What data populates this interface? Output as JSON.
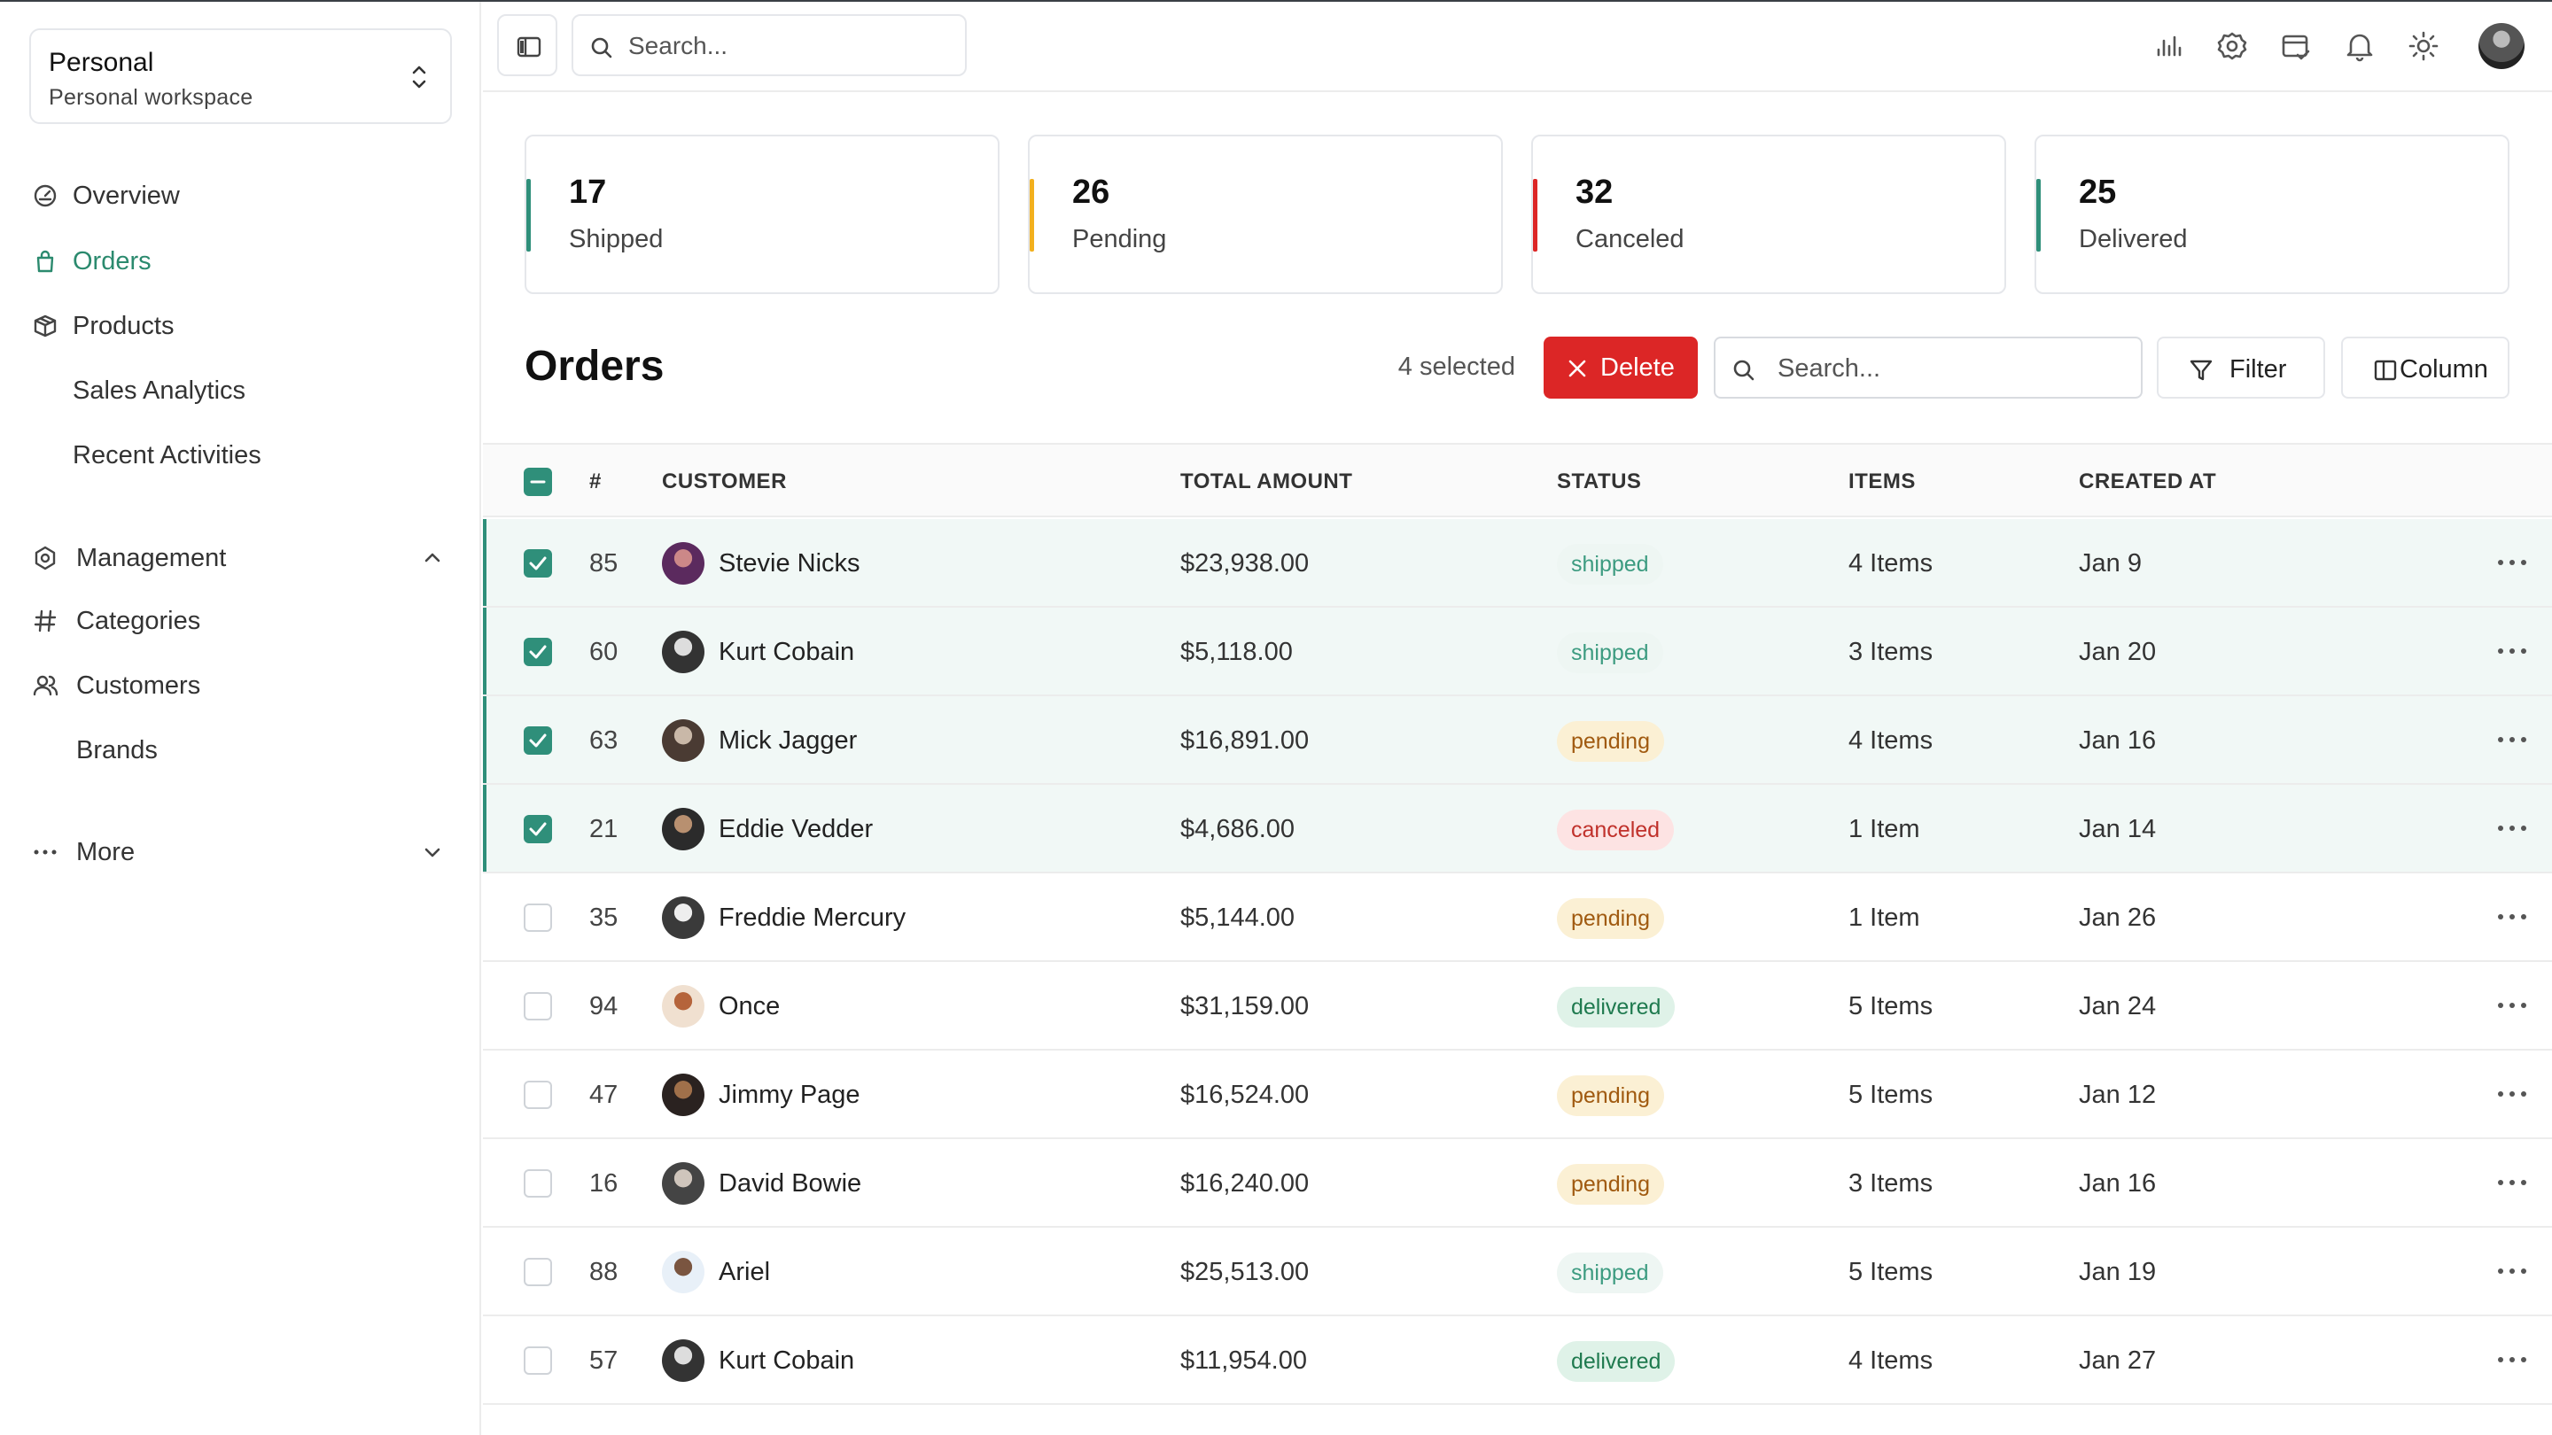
{
  "workspace": {
    "title": "Personal",
    "subtitle": "Personal workspace"
  },
  "sidebar": {
    "items": [
      {
        "label": "Overview",
        "icon": "gauge-icon",
        "active": false
      },
      {
        "label": "Orders",
        "icon": "shopping-bag-icon",
        "active": true
      },
      {
        "label": "Products",
        "icon": "package-icon",
        "active": false
      },
      {
        "label": "Sales Analytics",
        "icon": "",
        "active": false
      },
      {
        "label": "Recent Activities",
        "icon": "",
        "active": false
      }
    ],
    "management": {
      "label": "Management",
      "items": [
        {
          "label": "Categories",
          "icon": "hash-icon"
        },
        {
          "label": "Customers",
          "icon": "users-icon"
        },
        {
          "label": "Brands",
          "icon": ""
        }
      ]
    },
    "more_label": "More"
  },
  "topbar": {
    "search_placeholder": "Search..."
  },
  "stats": [
    {
      "value": "17",
      "label": "Shipped",
      "color": "#2f8f7a"
    },
    {
      "value": "26",
      "label": "Pending",
      "color": "#f2b01e"
    },
    {
      "value": "32",
      "label": "Canceled",
      "color": "#dc2626"
    },
    {
      "value": "25",
      "label": "Delivered",
      "color": "#2f8f7a"
    }
  ],
  "orders": {
    "title": "Orders",
    "selected_count": "4 selected",
    "delete_label": "Delete",
    "search_placeholder": "Search...",
    "filter_label": "Filter",
    "column_label": "Column",
    "columns": [
      "#",
      "CUSTOMER",
      "TOTAL AMOUNT",
      "STATUS",
      "ITEMS",
      "CREATED AT"
    ],
    "rows": [
      {
        "id": "85",
        "customer": "Stevie Nicks",
        "amount": "$23,938.00",
        "status": "shipped",
        "items": "4 Items",
        "created": "Jan 9",
        "selected": true
      },
      {
        "id": "60",
        "customer": "Kurt Cobain",
        "amount": "$5,118.00",
        "status": "shipped",
        "items": "3 Items",
        "created": "Jan 20",
        "selected": true
      },
      {
        "id": "63",
        "customer": "Mick Jagger",
        "amount": "$16,891.00",
        "status": "pending",
        "items": "4 Items",
        "created": "Jan 16",
        "selected": true
      },
      {
        "id": "21",
        "customer": "Eddie Vedder",
        "amount": "$4,686.00",
        "status": "canceled",
        "items": "1 Item",
        "created": "Jan 14",
        "selected": true
      },
      {
        "id": "35",
        "customer": "Freddie Mercury",
        "amount": "$5,144.00",
        "status": "pending",
        "items": "1 Item",
        "created": "Jan 26",
        "selected": false
      },
      {
        "id": "94",
        "customer": "Once",
        "amount": "$31,159.00",
        "status": "delivered",
        "items": "5 Items",
        "created": "Jan 24",
        "selected": false
      },
      {
        "id": "47",
        "customer": "Jimmy Page",
        "amount": "$16,524.00",
        "status": "pending",
        "items": "5 Items",
        "created": "Jan 12",
        "selected": false
      },
      {
        "id": "16",
        "customer": "David Bowie",
        "amount": "$16,240.00",
        "status": "pending",
        "items": "3 Items",
        "created": "Jan 16",
        "selected": false
      },
      {
        "id": "88",
        "customer": "Ariel",
        "amount": "$25,513.00",
        "status": "shipped",
        "items": "5 Items",
        "created": "Jan 19",
        "selected": false
      },
      {
        "id": "57",
        "customer": "Kurt Cobain",
        "amount": "$11,954.00",
        "status": "delivered",
        "items": "4 Items",
        "created": "Jan 27",
        "selected": false
      }
    ]
  }
}
